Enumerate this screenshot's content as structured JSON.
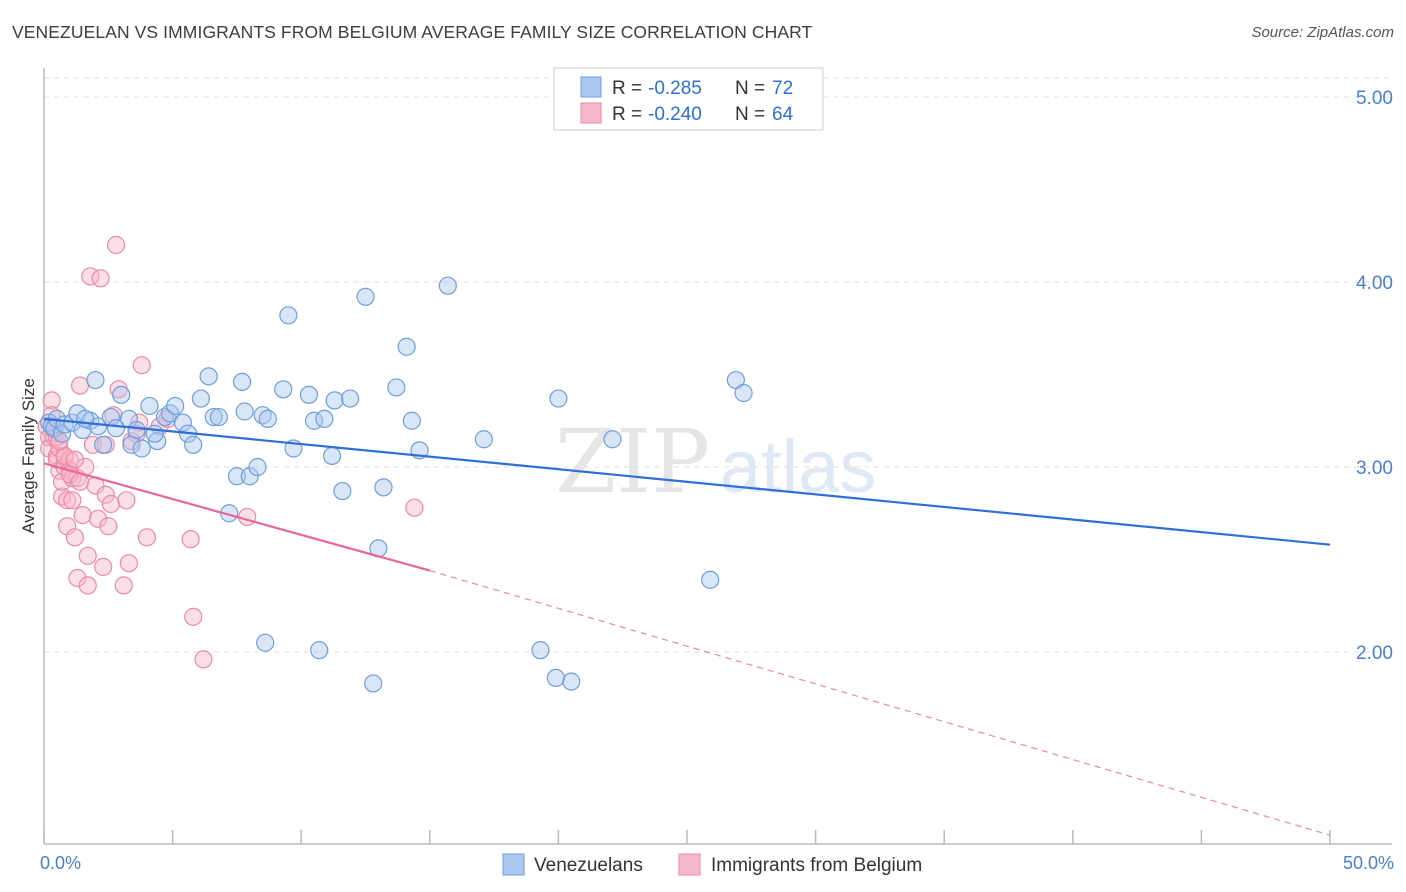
{
  "header": {
    "title": "VENEZUELAN VS IMMIGRANTS FROM BELGIUM AVERAGE FAMILY SIZE CORRELATION CHART",
    "source": "Source: ZipAtlas.com"
  },
  "watermark": {
    "zip": "ZIP",
    "atlas": "atlas"
  },
  "legend": {
    "venezuelans": {
      "r_label": "R =",
      "r_value": "-0.285",
      "n_label": "N =",
      "n_value": "72"
    },
    "belgium": {
      "r_label": "R =",
      "r_value": "-0.240",
      "n_label": "N =",
      "n_value": "64"
    }
  },
  "bottom_legend": {
    "venezuelans": "Venezuelans",
    "belgium": "Immigrants from Belgium"
  },
  "colors": {
    "blue_fill": "#aac8f0",
    "blue_stroke": "#6f9fdc",
    "blue_line": "#2f6fd6",
    "pink_fill": "#f6b8ca",
    "pink_stroke": "#ec8aa8",
    "pink_line": "#e8679a",
    "grid": "#dcdcdc"
  },
  "chart_data": {
    "type": "scatter",
    "title": "VENEZUELAN VS IMMIGRANTS FROM BELGIUM AVERAGE FAMILY SIZE CORRELATION CHART",
    "xlabel": "",
    "ylabel": "Average Family Size",
    "xlim": [
      0,
      50
    ],
    "ylim": [
      1.0,
      5.15
    ],
    "x_tick_labels": [
      "0.0%",
      "50.0%"
    ],
    "y_ticks": [
      2.0,
      3.0,
      4.0,
      5.0
    ],
    "y_tick_labels": [
      "2.00",
      "3.00",
      "4.00",
      "5.00"
    ],
    "series": [
      {
        "name": "Venezuelans",
        "color": "#aac8f0",
        "trend": {
          "x": [
            0,
            50
          ],
          "y": [
            3.26,
            2.58
          ]
        },
        "points": [
          [
            0.2,
            3.24
          ],
          [
            0.3,
            3.22
          ],
          [
            0.4,
            3.21
          ],
          [
            0.5,
            3.26
          ],
          [
            0.7,
            3.18
          ],
          [
            0.8,
            3.23
          ],
          [
            1.1,
            3.24
          ],
          [
            1.3,
            3.29
          ],
          [
            1.5,
            3.2
          ],
          [
            1.8,
            3.25
          ],
          [
            2.0,
            3.47
          ],
          [
            2.1,
            3.22
          ],
          [
            2.3,
            3.12
          ],
          [
            2.6,
            3.27
          ],
          [
            2.8,
            3.21
          ],
          [
            3.0,
            3.39
          ],
          [
            3.3,
            3.26
          ],
          [
            3.4,
            3.12
          ],
          [
            3.6,
            3.2
          ],
          [
            3.8,
            3.1
          ],
          [
            4.1,
            3.33
          ],
          [
            4.4,
            3.14
          ],
          [
            4.7,
            3.27
          ],
          [
            4.9,
            3.29
          ],
          [
            5.1,
            3.33
          ],
          [
            5.4,
            3.24
          ],
          [
            5.6,
            3.18
          ],
          [
            5.8,
            3.12
          ],
          [
            6.1,
            3.37
          ],
          [
            6.4,
            3.49
          ],
          [
            6.6,
            3.27
          ],
          [
            6.8,
            3.27
          ],
          [
            7.2,
            2.75
          ],
          [
            7.5,
            2.95
          ],
          [
            7.7,
            3.46
          ],
          [
            7.8,
            3.3
          ],
          [
            8.0,
            2.95
          ],
          [
            8.3,
            3.0
          ],
          [
            8.5,
            3.28
          ],
          [
            8.7,
            3.26
          ],
          [
            9.3,
            3.42
          ],
          [
            9.5,
            3.82
          ],
          [
            9.7,
            3.1
          ],
          [
            10.3,
            3.39
          ],
          [
            10.5,
            3.25
          ],
          [
            10.9,
            3.26
          ],
          [
            11.3,
            3.36
          ],
          [
            11.6,
            2.87
          ],
          [
            11.9,
            3.37
          ],
          [
            12.5,
            3.92
          ],
          [
            13.2,
            2.89
          ],
          [
            13.7,
            3.43
          ],
          [
            14.1,
            3.65
          ],
          [
            14.3,
            3.25
          ],
          [
            14.6,
            3.09
          ],
          [
            15.7,
            3.98
          ],
          [
            17.1,
            3.15
          ],
          [
            20.0,
            3.37
          ],
          [
            20.5,
            1.84
          ],
          [
            22.1,
            3.15
          ],
          [
            25.9,
            2.39
          ],
          [
            26.9,
            3.47
          ],
          [
            27.2,
            3.4
          ],
          [
            8.6,
            2.05
          ],
          [
            10.7,
            2.01
          ],
          [
            12.8,
            1.83
          ],
          [
            19.3,
            2.01
          ],
          [
            19.9,
            1.86
          ],
          [
            13.0,
            2.56
          ],
          [
            11.2,
            3.06
          ],
          [
            4.3,
            3.18
          ],
          [
            1.6,
            3.26
          ]
        ]
      },
      {
        "name": "Immigrants from Belgium",
        "color": "#f6b8ca",
        "trend": {
          "x": [
            0,
            15
          ],
          "y": [
            3.02,
            2.44
          ]
        },
        "trend_dashed": {
          "x": [
            15,
            50
          ],
          "y": [
            2.44,
            1.01
          ]
        },
        "points": [
          [
            0.1,
            3.22
          ],
          [
            0.2,
            3.16
          ],
          [
            0.2,
            3.1
          ],
          [
            0.3,
            3.36
          ],
          [
            0.3,
            3.28
          ],
          [
            0.4,
            3.2
          ],
          [
            0.4,
            3.16
          ],
          [
            0.5,
            3.06
          ],
          [
            0.5,
            3.04
          ],
          [
            0.6,
            3.1
          ],
          [
            0.6,
            2.98
          ],
          [
            0.7,
            2.84
          ],
          [
            0.7,
            2.92
          ],
          [
            0.8,
            3.05
          ],
          [
            0.8,
            3.0
          ],
          [
            0.9,
            2.82
          ],
          [
            0.9,
            2.68
          ],
          [
            1.0,
            3.04
          ],
          [
            1.0,
            2.98
          ],
          [
            1.1,
            2.94
          ],
          [
            1.1,
            2.82
          ],
          [
            1.2,
            2.62
          ],
          [
            1.3,
            2.94
          ],
          [
            1.3,
            2.4
          ],
          [
            1.4,
            3.44
          ],
          [
            1.5,
            2.74
          ],
          [
            1.6,
            3.0
          ],
          [
            1.7,
            2.52
          ],
          [
            1.7,
            2.36
          ],
          [
            1.8,
            4.03
          ],
          [
            1.9,
            3.12
          ],
          [
            2.0,
            2.9
          ],
          [
            2.1,
            2.72
          ],
          [
            2.2,
            4.02
          ],
          [
            2.3,
            2.46
          ],
          [
            2.4,
            2.85
          ],
          [
            2.5,
            2.68
          ],
          [
            2.6,
            2.8
          ],
          [
            2.7,
            3.28
          ],
          [
            2.8,
            4.2
          ],
          [
            2.9,
            3.42
          ],
          [
            3.1,
            2.36
          ],
          [
            3.2,
            2.82
          ],
          [
            3.3,
            2.48
          ],
          [
            3.4,
            3.14
          ],
          [
            3.7,
            3.24
          ],
          [
            3.8,
            3.55
          ],
          [
            4.0,
            2.62
          ],
          [
            4.5,
            3.22
          ],
          [
            4.8,
            3.26
          ],
          [
            5.7,
            2.61
          ],
          [
            5.8,
            2.19
          ],
          [
            6.2,
            1.96
          ],
          [
            7.9,
            2.73
          ],
          [
            14.4,
            2.78
          ],
          [
            0.5,
            3.16
          ],
          [
            0.8,
            3.06
          ],
          [
            1.0,
            2.96
          ],
          [
            1.2,
            3.04
          ],
          [
            1.4,
            2.92
          ],
          [
            0.3,
            3.22
          ],
          [
            0.6,
            3.14
          ],
          [
            2.4,
            3.12
          ],
          [
            3.6,
            3.18
          ]
        ]
      }
    ]
  }
}
